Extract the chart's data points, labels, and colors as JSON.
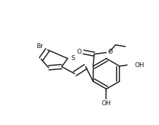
{
  "bg_color": "#ffffff",
  "line_color": "#1a1a1a",
  "line_width": 1.1,
  "figsize": [
    2.26,
    1.77
  ],
  "dpi": 100,
  "xlim": [
    0,
    226
  ],
  "ylim": [
    0,
    177
  ]
}
